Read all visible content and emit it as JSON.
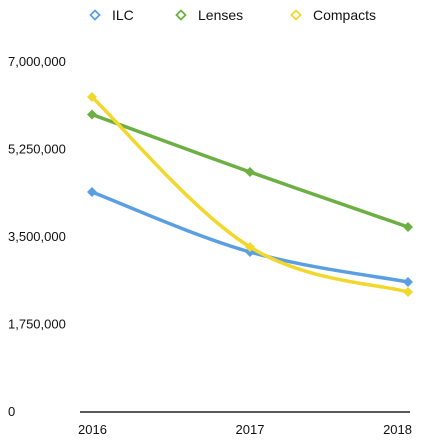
{
  "chart_data": {
    "type": "line",
    "title": "",
    "xlabel": "",
    "ylabel": "",
    "categories": [
      "2016",
      "2017",
      "2018"
    ],
    "ylim": [
      0,
      7000000
    ],
    "yticks": [
      0,
      1750000,
      3500000,
      5250000,
      7000000
    ],
    "ytick_labels": [
      "0",
      "1,750,000",
      "3,500,000",
      "5,250,000",
      "7,000,000"
    ],
    "grid": false,
    "legend_position": "top",
    "series": [
      {
        "name": "ILC",
        "color": "#5b9fe3",
        "values": [
          4400000,
          3200000,
          2600000
        ]
      },
      {
        "name": "Lenses",
        "color": "#6cb043",
        "values": [
          5950000,
          4800000,
          3700000
        ]
      },
      {
        "name": "Compacts",
        "color": "#f2d72c",
        "values": [
          6300000,
          3300000,
          2400000
        ]
      }
    ]
  }
}
